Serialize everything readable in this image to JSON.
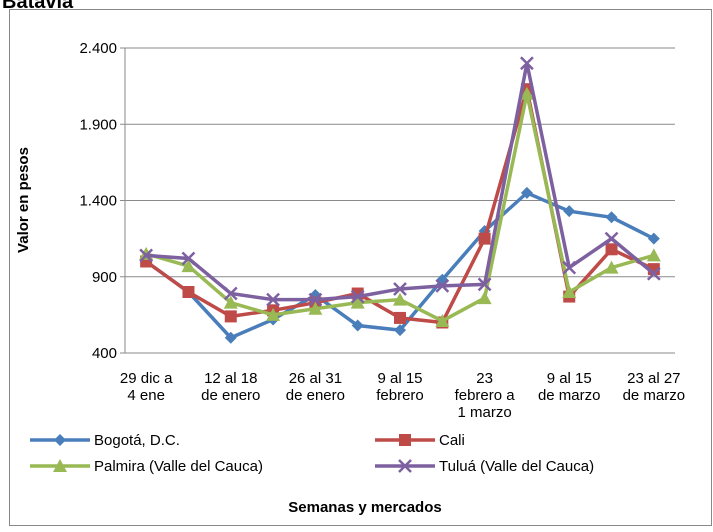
{
  "chart_data": {
    "type": "line",
    "title": "Batavia",
    "y_label": "Valor en pesos",
    "x_label": "Semanas y mercados",
    "categories": [
      "29 dic a\n4 ene",
      null,
      "12 al 18\nde enero",
      null,
      "26 al 31\nde enero",
      null,
      "9 al 15\nfebrero",
      null,
      "23\nfebrero a\n1 marzo",
      null,
      "9 al 15\nde marzo",
      null,
      "23 al 27\nde marzo"
    ],
    "ylim": [
      400,
      2400
    ],
    "yticks": [
      400,
      900,
      {
        "value": 1400,
        "label": "1.400"
      },
      {
        "value": 1900,
        "label": "1.900"
      },
      {
        "value": 2400,
        "label": "2.400"
      }
    ],
    "grid": true,
    "series": [
      {
        "name": "Bogotá, D.C.",
        "color": "#4a7ebb",
        "marker": "diamond",
        "values": [
          1000,
          800,
          500,
          620,
          780,
          580,
          550,
          880,
          1200,
          1450,
          1330,
          1290,
          1150
        ]
      },
      {
        "name": "Cali",
        "color": "#be4b48",
        "marker": "square",
        "values": [
          1000,
          800,
          640,
          680,
          730,
          790,
          630,
          600,
          1150,
          2130,
          770,
          1080,
          950
        ]
      },
      {
        "name": "Palmira (Valle del Cauca)",
        "color": "#98b954",
        "marker": "triangle",
        "values": [
          1050,
          970,
          730,
          650,
          690,
          730,
          750,
          610,
          760,
          2100,
          800,
          960,
          1040
        ]
      },
      {
        "name": "Tuluá (Valle del Cauca)",
        "color": "#7d60a0",
        "marker": "x",
        "values": [
          1040,
          1020,
          790,
          750,
          750,
          770,
          820,
          840,
          850,
          2300,
          960,
          1150,
          920
        ]
      }
    ]
  }
}
